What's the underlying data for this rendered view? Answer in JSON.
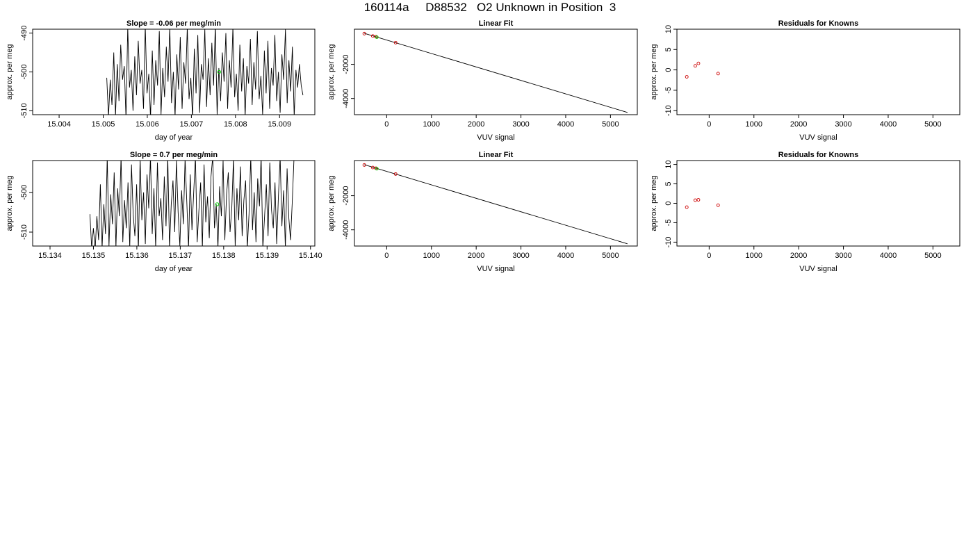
{
  "page_title": "160114a     D88532   O2 Unknown in Position  3",
  "chart_data": [
    {
      "id": "ts1",
      "type": "line",
      "title": "Slope =  -0.06  per meg/min",
      "xlabel": "day of year",
      "ylabel": "approx. per meg",
      "xlim": [
        15.0034,
        15.0098
      ],
      "ylim": [
        -511,
        -489
      ],
      "xticks": [
        15.004,
        15.005,
        15.006,
        15.007,
        15.008,
        15.009
      ],
      "xticklabels": [
        "15.004",
        "15.005",
        "15.006",
        "15.007",
        "15.008",
        "15.009"
      ],
      "yticks": [
        -490,
        -500,
        -510
      ],
      "yticklabels": [
        "-490",
        "-500",
        "-510"
      ],
      "series_color": "#000000",
      "highlight_color": "#00cc00",
      "series": [
        {
          "name": "",
          "x_start": 15.00508,
          "x_end": 15.00953,
          "y": [
            -501.5,
            -511.5,
            -502,
            -508.5,
            -495,
            -511.5,
            -498,
            -507.5,
            -493,
            -502,
            -498.5,
            -512,
            -488.5,
            -504,
            -499.5,
            -510,
            -496,
            -506,
            -492,
            -503,
            -499.5,
            -509.5,
            -488,
            -505.5,
            -500.5,
            -512,
            -494.5,
            -508.5,
            -497,
            -503.5,
            -489.5,
            -511,
            -499,
            -506.5,
            -493.5,
            -502.5,
            -488.5,
            -508,
            -500,
            -511.5,
            -495.5,
            -504.5,
            -491,
            -509.5,
            -497.5,
            -503,
            -488.5,
            -507,
            -501.5,
            -512,
            -494,
            -505.5,
            -490.5,
            -510.5,
            -498,
            -502,
            -489,
            -509,
            -496.5,
            -506,
            -492.5,
            -503.5,
            -488,
            -511,
            -499,
            -507.5,
            -495,
            -502.5,
            -490,
            -509.5,
            -497,
            -504,
            -488.5,
            -506.5,
            -500.5,
            -510,
            -493,
            -505,
            -496.5,
            -511.5,
            -498.5,
            -503,
            -491.5,
            -508.5,
            -497.5,
            -504.5,
            -489.5,
            -507,
            -501,
            -511,
            -494.5,
            -505.5,
            -492,
            -509.5,
            -499,
            -503.5,
            -490.5,
            -507.5,
            -500,
            -510.5,
            -495.5,
            -502,
            -489,
            -508,
            -497,
            -505,
            -493.5,
            -511.5,
            -499.5,
            -504,
            -498,
            -503.5,
            -506
          ]
        }
      ],
      "highlight_point": {
        "x": 15.00763,
        "y": -500
      }
    },
    {
      "id": "fit1",
      "type": "scatter",
      "title": "Linear Fit",
      "xlabel": "VUV signal",
      "ylabel": "approx. per meg",
      "xlim": [
        -720,
        5600
      ],
      "ylim": [
        -4950,
        60
      ],
      "xticks": [
        0,
        1000,
        2000,
        3000,
        4000,
        5000
      ],
      "xticklabels": [
        "0",
        "1000",
        "2000",
        "3000",
        "4000",
        "5000"
      ],
      "yticks": [
        -2000,
        -4000
      ],
      "yticklabels": [
        "-2000",
        "-4000"
      ],
      "line": {
        "x": [
          -500,
          5380
        ],
        "y": [
          -180,
          -4820
        ]
      },
      "known_points": {
        "color": "#cc0000",
        "x": [
          -500,
          -310,
          -240,
          200
        ],
        "y": [
          -200,
          -340,
          -380,
          -730
        ]
      },
      "unknown_points": {
        "color": "#00cc00",
        "x": [
          -220
        ],
        "y": [
          -410
        ]
      }
    },
    {
      "id": "res1",
      "type": "scatter",
      "title": "Residuals for Knowns",
      "xlabel": "VUV signal",
      "ylabel": "approx. per meg",
      "xlim": [
        -720,
        5600
      ],
      "ylim": [
        -11,
        10
      ],
      "xticks": [
        0,
        1000,
        2000,
        3000,
        4000,
        5000
      ],
      "xticklabels": [
        "0",
        "1000",
        "2000",
        "3000",
        "4000",
        "5000"
      ],
      "yticks": [
        10,
        5,
        0,
        -5,
        -10
      ],
      "yticklabels": [
        "10",
        "5",
        "0",
        "-5",
        "-10"
      ],
      "points": {
        "color": "#cc0000",
        "x": [
          -500,
          -310,
          -240,
          200
        ],
        "y": [
          -1.7,
          1.0,
          1.6,
          -0.9
        ]
      }
    },
    {
      "id": "ts2",
      "type": "line",
      "title": "Slope =  0.7  per meg/min",
      "xlabel": "day of year",
      "ylabel": "approx. per meg",
      "xlim": [
        15.1336,
        15.1401
      ],
      "ylim": [
        -513.5,
        -492
      ],
      "xticks": [
        15.134,
        15.135,
        15.136,
        15.137,
        15.138,
        15.139,
        15.14
      ],
      "xticklabels": [
        "15.134",
        "15.135",
        "15.136",
        "15.137",
        "15.138",
        "15.139",
        "15.140"
      ],
      "yticks": [
        -500,
        -510
      ],
      "yticklabels": [
        "-500",
        "-510"
      ],
      "series_color": "#000000",
      "highlight_color": "#00cc00",
      "series": [
        {
          "name": "",
          "x_start": 15.13492,
          "x_end": 15.13962,
          "y": [
            -505.5,
            -514,
            -509,
            -514.5,
            -506,
            -512,
            -498,
            -514,
            -503,
            -510.5,
            -491,
            -513.5,
            -500.5,
            -508,
            -495,
            -514,
            -499,
            -506,
            -491,
            -512.5,
            -502,
            -509,
            -497.5,
            -514,
            -493,
            -505.5,
            -511,
            -498,
            -514.5,
            -491.5,
            -507,
            -500,
            -513,
            -495.5,
            -504,
            -491,
            -510.5,
            -499,
            -514,
            -492.5,
            -506,
            -501.5,
            -512,
            -496,
            -508.5,
            -491,
            -514,
            -503,
            -497,
            -510,
            -492,
            -505,
            -513.5,
            -499.5,
            -508,
            -491.5,
            -502.5,
            -514,
            -495.5,
            -509.5,
            -500,
            -491,
            -512.5,
            -504.5,
            -497.5,
            -514,
            -493,
            -507.5,
            -501,
            -511.5,
            -496,
            -491,
            -509,
            -503,
            -514,
            -498.5,
            -506,
            -492,
            -512,
            -500.5,
            -495,
            -510,
            -504,
            -491.5,
            -513.5,
            -499,
            -507,
            -493.5,
            -511,
            -502,
            -497,
            -514,
            -505.5,
            -491,
            -509.5,
            -500,
            -512.5,
            -496.5,
            -503.5,
            -491,
            -514,
            -506,
            -498,
            -511,
            -492.5,
            -504.5,
            -509,
            -497.5,
            -513,
            -501,
            -491,
            -508.5,
            -499.5,
            -514,
            -494,
            -506.5,
            -512,
            -502.5,
            -491.5
          ]
        }
      ],
      "highlight_point": {
        "x": 15.13785,
        "y": -503
      }
    },
    {
      "id": "fit2",
      "type": "scatter",
      "title": "Linear Fit",
      "xlabel": "VUV signal",
      "ylabel": "approx. per meg",
      "xlim": [
        -720,
        5600
      ],
      "ylim": [
        -4950,
        60
      ],
      "xticks": [
        0,
        1000,
        2000,
        3000,
        4000,
        5000
      ],
      "xticklabels": [
        "0",
        "1000",
        "2000",
        "3000",
        "4000",
        "5000"
      ],
      "yticks": [
        -2000,
        -4000
      ],
      "yticklabels": [
        "-2000",
        "-4000"
      ],
      "line": {
        "x": [
          -500,
          5380
        ],
        "y": [
          -180,
          -4820
        ]
      },
      "known_points": {
        "color": "#cc0000",
        "x": [
          -500,
          -310,
          -240,
          200
        ],
        "y": [
          -200,
          -350,
          -390,
          -730
        ]
      },
      "unknown_points": {
        "color": "#00cc00",
        "x": [
          -220
        ],
        "y": [
          -420
        ]
      }
    },
    {
      "id": "res2",
      "type": "scatter",
      "title": "Residuals for Knowns",
      "xlabel": "VUV signal",
      "ylabel": "approx. per meg",
      "xlim": [
        -720,
        5600
      ],
      "ylim": [
        -11,
        11
      ],
      "xticks": [
        0,
        1000,
        2000,
        3000,
        4000,
        5000
      ],
      "xticklabels": [
        "0",
        "1000",
        "2000",
        "3000",
        "4000",
        "5000"
      ],
      "yticks": [
        10,
        5,
        0,
        -5,
        -10
      ],
      "yticklabels": [
        "10",
        "5",
        "0",
        "-5",
        "-10"
      ],
      "points": {
        "color": "#cc0000",
        "x": [
          -500,
          -310,
          -240,
          200
        ],
        "y": [
          -1.0,
          0.8,
          0.9,
          -0.5
        ]
      }
    }
  ]
}
